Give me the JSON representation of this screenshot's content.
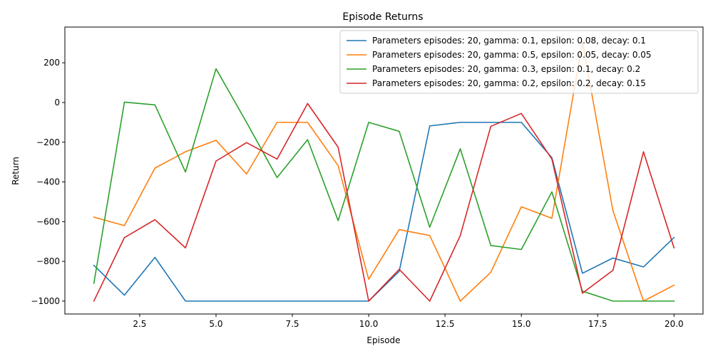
{
  "chart_data": {
    "type": "line",
    "title": "Episode Returns",
    "xlabel": "Episode",
    "ylabel": "Return",
    "xlim": [
      0.05,
      20.95
    ],
    "ylim": [
      -1065,
      380
    ],
    "xticks": [
      2.5,
      5.0,
      7.5,
      10.0,
      12.5,
      15.0,
      17.5,
      20.0
    ],
    "xtick_labels": [
      "2.5",
      "5.0",
      "7.5",
      "10.0",
      "12.5",
      "15.0",
      "17.5",
      "20.0"
    ],
    "yticks": [
      -1000,
      -800,
      -600,
      -400,
      -200,
      0,
      200
    ],
    "ytick_labels": [
      "−1000",
      "−800",
      "−600",
      "−400",
      "−200",
      "0",
      "200"
    ],
    "grid": false,
    "legend_position": "top-right",
    "x": [
      1,
      2,
      3,
      4,
      5,
      6,
      7,
      8,
      9,
      10,
      11,
      12,
      13,
      14,
      15,
      16,
      17,
      18,
      19,
      20
    ],
    "series": [
      {
        "name": "Parameters episodes: 20, gamma: 0.1, epsilon: 0.08, decay: 0.1",
        "color": "#1f77b4",
        "values": [
          -820,
          -970,
          -780,
          -1000,
          -1000,
          -1000,
          -1000,
          -1000,
          -1000,
          -1000,
          -850,
          -118,
          -100,
          -100,
          -100,
          -278,
          -860,
          -783,
          -828,
          -680
        ]
      },
      {
        "name": "Parameters episodes: 20, gamma: 0.5, epsilon: 0.05, decay: 0.05",
        "color": "#ff7f0e",
        "values": [
          -577,
          -620,
          -330,
          -248,
          -190,
          -360,
          -100,
          -100,
          -318,
          -890,
          -640,
          -670,
          -1000,
          -855,
          -525,
          -583,
          305,
          -545,
          -1000,
          -920
        ]
      },
      {
        "name": "Parameters episodes: 20, gamma: 0.3, epsilon: 0.1, decay: 0.2",
        "color": "#2ca02c",
        "values": [
          -910,
          2,
          -12,
          -350,
          170,
          -100,
          -378,
          -187,
          -595,
          -100,
          -145,
          -628,
          -233,
          -720,
          -740,
          -450,
          -950,
          -1000,
          -1000,
          -1000
        ]
      },
      {
        "name": "Parameters episodes: 20, gamma: 0.2, epsilon: 0.2, decay: 0.15",
        "color": "#d62728",
        "values": [
          -1000,
          -680,
          -590,
          -732,
          -295,
          -202,
          -285,
          -5,
          -225,
          -1000,
          -840,
          -1000,
          -670,
          -120,
          -55,
          -285,
          -960,
          -845,
          -248,
          -732
        ]
      }
    ]
  }
}
